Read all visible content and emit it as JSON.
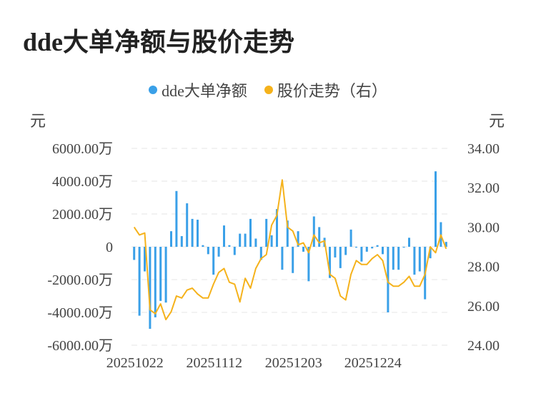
{
  "title": "dde大单净额与股价走势",
  "legend": {
    "items": [
      {
        "label": "dde大单净额",
        "color": "#3aa0e8"
      },
      {
        "label": "股价走势（右）",
        "color": "#f5b21b"
      }
    ]
  },
  "chart_data": {
    "type": "bar+line",
    "left_unit": "元",
    "right_unit": "元",
    "left_axis": {
      "min": -6000,
      "max": 6000,
      "ticks": [
        6000,
        4000,
        2000,
        0,
        -2000,
        -4000,
        -6000
      ],
      "tick_labels": [
        "6000.00万",
        "4000.00万",
        "2000.00万",
        "0",
        "-2000.00万",
        "-4000.00万",
        "-6000.00万"
      ]
    },
    "right_axis": {
      "min": 24,
      "max": 34,
      "ticks": [
        34,
        32,
        30,
        28,
        26,
        24
      ],
      "tick_labels": [
        "34.00",
        "32.00",
        "30.00",
        "28.00",
        "26.00",
        "24.00"
      ]
    },
    "x_tick_labels": [
      {
        "label": "20251022",
        "index": 0
      },
      {
        "label": "20251112",
        "index": 15
      },
      {
        "label": "20251203",
        "index": 30
      },
      {
        "label": "20251224",
        "index": 45
      }
    ],
    "grid": true,
    "series": [
      {
        "name": "dde大单净额",
        "type": "bar",
        "color": "#3aa0e8",
        "values": [
          -800,
          -4200,
          -1500,
          -5000,
          -4300,
          -3300,
          -3400,
          950,
          3400,
          650,
          2650,
          1700,
          1650,
          100,
          -450,
          -1700,
          -600,
          1300,
          100,
          -500,
          800,
          800,
          1700,
          500,
          -800,
          1700,
          700,
          2300,
          -1400,
          1600,
          -1600,
          950,
          -300,
          -2100,
          1850,
          1200,
          550,
          -1900,
          -650,
          -1300,
          -500,
          1050,
          -50,
          -900,
          -300,
          -100,
          100,
          -450,
          -4000,
          -1400,
          -1400,
          -50,
          550,
          -1700,
          -1500,
          -3200,
          -700,
          4600,
          1500,
          300
        ]
      },
      {
        "name": "股价走势（右）",
        "type": "line",
        "color": "#f5b21b",
        "values": [
          30.0,
          29.6,
          29.7,
          25.8,
          25.6,
          26.1,
          25.3,
          25.7,
          26.5,
          26.4,
          26.8,
          26.9,
          26.6,
          26.4,
          26.4,
          27.1,
          27.7,
          27.9,
          27.2,
          27.1,
          26.2,
          27.4,
          26.9,
          27.9,
          28.4,
          28.6,
          30.1,
          30.6,
          32.4,
          30.0,
          29.8,
          29.1,
          29.2,
          28.7,
          29.6,
          29.2,
          29.3,
          27.6,
          27.4,
          26.5,
          26.3,
          27.6,
          28.3,
          28.1,
          28.1,
          28.4,
          28.6,
          28.3,
          27.2,
          27.0,
          27.0,
          27.2,
          27.5,
          27.0,
          27.0,
          27.6,
          29.0,
          28.7,
          29.6,
          28.9
        ]
      }
    ]
  }
}
